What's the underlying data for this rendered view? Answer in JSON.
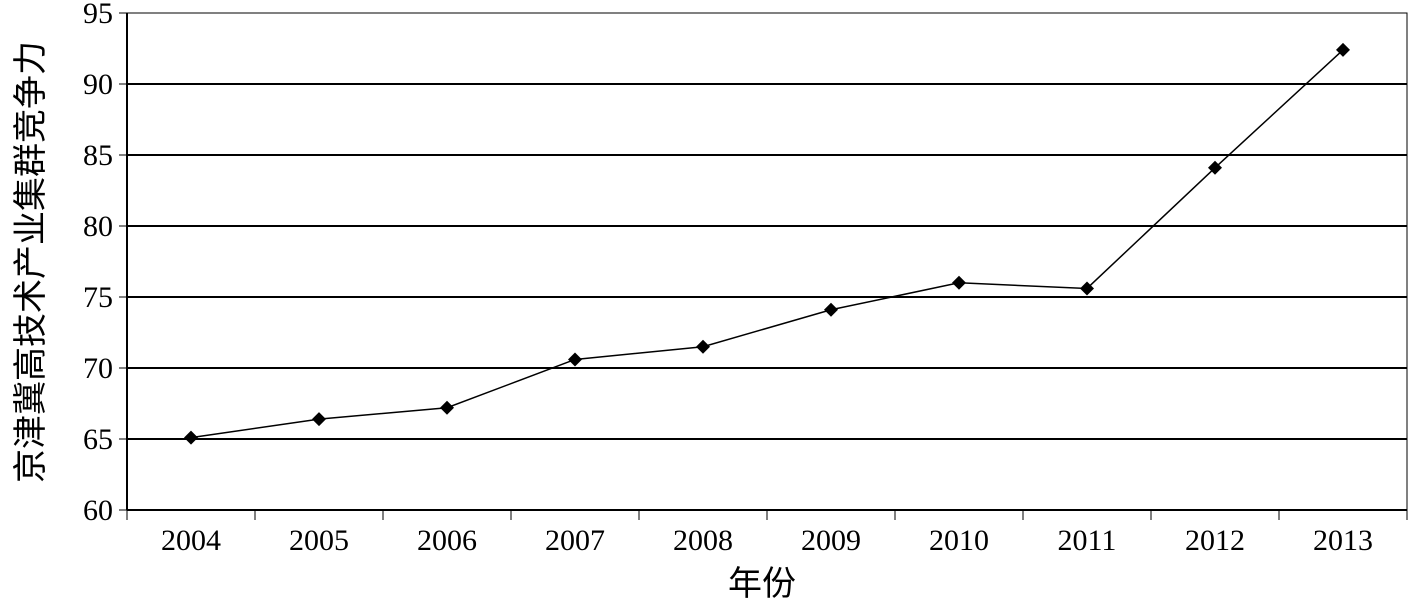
{
  "chart_data": {
    "type": "line",
    "title": "",
    "xlabel": "年份",
    "ylabel": "京津冀高技术产业集群竞争力",
    "categories": [
      "2004",
      "2005",
      "2006",
      "2007",
      "2008",
      "2009",
      "2010",
      "2011",
      "2012",
      "2013"
    ],
    "series": [
      {
        "values": [
          65.1,
          66.4,
          67.2,
          70.6,
          71.5,
          74.1,
          76.0,
          75.6,
          84.1,
          92.4
        ]
      }
    ],
    "ylim": [
      60,
      95
    ],
    "yticks": [
      "60",
      "65",
      "70",
      "75",
      "80",
      "85",
      "90",
      "95"
    ],
    "grid": "horizontal",
    "legend": "none",
    "colors": {
      "line": "#000000",
      "marker": "#000000",
      "grid": "#000000"
    }
  }
}
